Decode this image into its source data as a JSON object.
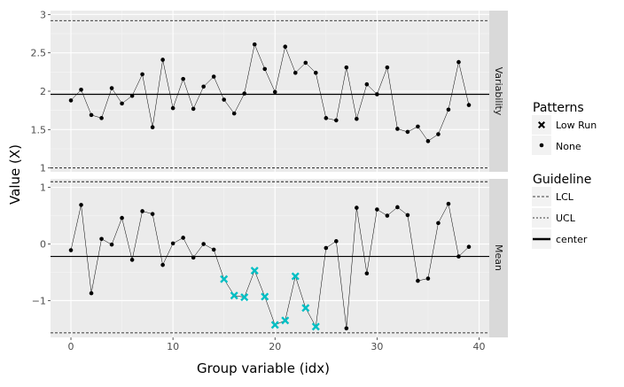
{
  "chart_data": {
    "type": "line",
    "xlabel": "Group variable (idx)",
    "ylabel": "Value (X)",
    "x_ticks": [
      "0",
      "10",
      "20",
      "30",
      "40"
    ],
    "xlim": [
      -2,
      41
    ],
    "legend_placement": "right",
    "grid": true,
    "colors": {
      "point": "#000000",
      "low_run": "#00bfc4",
      "panel_bg": "#ebebeb",
      "strip_bg": "#d9d9d9",
      "grid": "#ffffff"
    },
    "legends": {
      "patterns": {
        "title": "Patterns",
        "items": [
          "Low Run",
          "None"
        ]
      },
      "guideline": {
        "title": "Guideline",
        "items": [
          "LCL",
          "UCL",
          "center"
        ]
      }
    },
    "panels": [
      {
        "strip": "Variability",
        "ylim": [
          0.95,
          3.05
        ],
        "y_ticks": [
          "1",
          "1.5",
          "2",
          "2.5",
          "3"
        ],
        "center": 1.96,
        "lcl": 1.0,
        "ucl": 2.92,
        "values": [
          1.88,
          2.02,
          1.69,
          1.65,
          2.04,
          1.84,
          1.94,
          2.22,
          1.53,
          2.41,
          1.78,
          2.16,
          1.77,
          2.06,
          2.19,
          1.89,
          1.71,
          1.97,
          2.61,
          2.29,
          1.99,
          2.58,
          2.24,
          2.37,
          2.24,
          1.65,
          1.62,
          2.31,
          1.64,
          2.09,
          1.96,
          2.31,
          1.51,
          1.47,
          1.54,
          1.35,
          1.44,
          1.76,
          2.38,
          1.82
        ],
        "low_run": []
      },
      {
        "strip": "Mean",
        "ylim": [
          -1.65,
          1.15
        ],
        "y_ticks": [
          "-1",
          "0",
          "1"
        ],
        "center": -0.22,
        "lcl": -1.57,
        "ucl": 1.1,
        "values": [
          -0.11,
          0.69,
          -0.87,
          0.09,
          -0.01,
          0.46,
          -0.28,
          0.58,
          0.53,
          -0.37,
          0.01,
          0.11,
          -0.24,
          0.0,
          -0.1,
          -0.62,
          -0.91,
          -0.94,
          -0.47,
          -0.93,
          -1.43,
          -1.35,
          -0.57,
          -1.13,
          -1.46,
          -0.07,
          0.05,
          -1.49,
          0.64,
          -0.52,
          0.61,
          0.5,
          0.65,
          0.51,
          -0.65,
          -0.61,
          0.37,
          0.71,
          -0.22,
          -0.05
        ],
        "low_run": [
          15,
          16,
          17,
          18,
          19,
          20,
          21,
          22,
          23,
          24
        ]
      }
    ]
  }
}
